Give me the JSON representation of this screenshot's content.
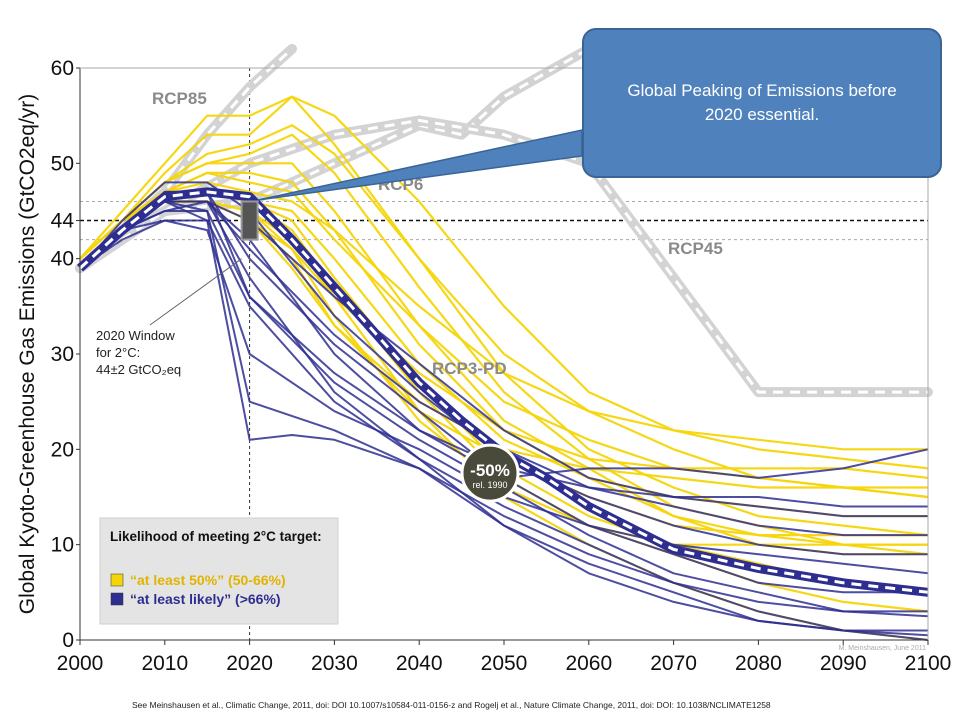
{
  "chart_data": {
    "type": "line",
    "ylabel": "Global Kyoto-Greenhouse Gas Emissions (GtCO2eq/yr)",
    "xlim": [
      2000,
      2100
    ],
    "ylim": [
      0,
      60
    ],
    "x_ticks": [
      "2000",
      "2010",
      "2020",
      "2030",
      "2040",
      "2050",
      "2060",
      "2070",
      "2080",
      "2090",
      "2100"
    ],
    "y_ticks": [
      {
        "value": 0,
        "label": "0"
      },
      {
        "value": 10,
        "label": "10"
      },
      {
        "value": 20,
        "label": "20"
      },
      {
        "value": 30,
        "label": "30"
      },
      {
        "value": 40,
        "label": "40"
      },
      {
        "value": 44,
        "label": "44"
      },
      {
        "value": 50,
        "label": "50"
      },
      {
        "value": 60,
        "label": "60"
      }
    ],
    "reference_lines": {
      "center": 44,
      "band": [
        42,
        46
      ],
      "window_year": 2020
    },
    "window_label": [
      "2020 Window",
      "for 2°C:",
      "44±2 GtCO₂eq"
    ],
    "reduction_marker": {
      "x": 2050,
      "y": 17.5,
      "label": "-50%",
      "sublabel": "rel. 1990"
    },
    "watermark": "M. Meinshausen, June 2011",
    "legend": {
      "title": "Likelihood of meeting 2°C target:",
      "entries": [
        {
          "label": "“at least 50%” (50-66%)",
          "color": "#f5d50a"
        },
        {
          "label": "“at least likely” (>66%)",
          "color": "#2e2e91"
        }
      ]
    },
    "rcp_series": [
      {
        "name": "RCP85",
        "x": [
          2000,
          2005,
          2010,
          2015,
          2020,
          2025
        ],
        "y": [
          39,
          43,
          47,
          53,
          58,
          62
        ]
      },
      {
        "name": "RCP6",
        "x": [
          2000,
          2005,
          2010,
          2020,
          2030,
          2040,
          2045,
          2050,
          2060
        ],
        "y": [
          39,
          43,
          45,
          46,
          50,
          54,
          53,
          57,
          62
        ]
      },
      {
        "name": "RCP45",
        "x": [
          2000,
          2010,
          2020,
          2030,
          2040,
          2050,
          2060,
          2070,
          2080,
          2090,
          2100
        ],
        "y": [
          39,
          45,
          50,
          53,
          54.5,
          53,
          50,
          38,
          26,
          26,
          26
        ]
      },
      {
        "name": "RCP3-PD",
        "x": [
          2000,
          2005,
          2010,
          2015,
          2020,
          2025,
          2030,
          2035,
          2040,
          2045,
          2050,
          2055,
          2060,
          2070,
          2080,
          2090,
          2100
        ],
        "y": [
          39,
          43,
          46.5,
          47,
          46.5,
          42,
          37,
          32,
          27,
          23,
          19.5,
          17,
          14,
          9.5,
          7.5,
          6,
          5
        ]
      }
    ],
    "scenarios_likely": [
      {
        "x": [
          2000,
          2005,
          2010,
          2015,
          2020,
          2025,
          2030,
          2040,
          2050,
          2060,
          2070,
          2080,
          2090,
          2100
        ],
        "y": [
          39,
          42.5,
          46,
          44,
          21,
          21.5,
          21,
          18,
          13,
          9,
          6,
          4,
          3,
          2.5
        ]
      },
      {
        "x": [
          2000,
          2005,
          2010,
          2015,
          2020,
          2030,
          2040,
          2050,
          2060,
          2070,
          2080,
          2090,
          2100
        ],
        "y": [
          39,
          43,
          46,
          45,
          25,
          22,
          18,
          12,
          8,
          5,
          2,
          1,
          0.5
        ]
      },
      {
        "x": [
          2000,
          2005,
          2010,
          2015,
          2020,
          2030,
          2040,
          2050,
          2060,
          2070,
          2080,
          2090,
          2100
        ],
        "y": [
          39,
          43,
          47,
          47,
          36,
          27,
          21,
          16,
          11,
          7,
          5,
          3,
          3
        ]
      },
      {
        "x": [
          2000,
          2005,
          2010,
          2015,
          2020,
          2030,
          2040,
          2050,
          2060,
          2070,
          2080,
          2090,
          2100
        ],
        "y": [
          39,
          43,
          47,
          47,
          40,
          31,
          24,
          17,
          12,
          9,
          6,
          5,
          5
        ]
      },
      {
        "x": [
          2000,
          2005,
          2010,
          2015,
          2020,
          2030,
          2040,
          2050,
          2060,
          2070,
          2080,
          2090,
          2100
        ],
        "y": [
          39,
          44,
          48,
          48,
          45,
          34,
          26,
          19,
          15,
          12,
          10,
          9,
          9
        ]
      },
      {
        "x": [
          2000,
          2005,
          2010,
          2015,
          2020,
          2030,
          2040,
          2050,
          2060,
          2070,
          2080,
          2090,
          2100
        ],
        "y": [
          39,
          43,
          46,
          46,
          44,
          36,
          29,
          22,
          17,
          15,
          14,
          13,
          13
        ]
      },
      {
        "x": [
          2000,
          2005,
          2010,
          2015,
          2020,
          2030,
          2040,
          2050,
          2060,
          2070,
          2080,
          2090,
          2100
        ],
        "y": [
          39,
          43,
          46,
          46,
          38,
          26,
          19,
          14,
          10,
          6,
          3,
          1,
          0
        ]
      },
      {
        "x": [
          2000,
          2005,
          2010,
          2015,
          2020,
          2030,
          2040,
          2050,
          2060,
          2070,
          2080,
          2090,
          2100
        ],
        "y": [
          39,
          43,
          45,
          46,
          42,
          30,
          22,
          17,
          18,
          18,
          17,
          18,
          20
        ]
      },
      {
        "x": [
          2000,
          2005,
          2010,
          2015,
          2020,
          2030,
          2040,
          2050,
          2060,
          2070,
          2080,
          2090,
          2100
        ],
        "y": [
          39,
          43,
          46,
          46,
          41,
          32,
          25,
          20,
          16,
          14,
          12,
          11,
          11
        ]
      },
      {
        "x": [
          2000,
          2005,
          2010,
          2015,
          2020,
          2030,
          2040,
          2050,
          2060,
          2070,
          2080,
          2090,
          2100
        ],
        "y": [
          39,
          43,
          45,
          45,
          36,
          28,
          22,
          18,
          16,
          15,
          15,
          14,
          14
        ]
      },
      {
        "x": [
          2000,
          2005,
          2010,
          2015,
          2020,
          2030,
          2040,
          2050,
          2060,
          2070,
          2080,
          2090,
          2100
        ],
        "y": [
          39,
          43,
          44,
          44,
          35,
          25,
          19,
          12,
          7,
          4,
          2,
          1,
          1
        ]
      },
      {
        "x": [
          2000,
          2005,
          2010,
          2015,
          2020,
          2030,
          2040,
          2050,
          2060,
          2070,
          2080,
          2090,
          2100
        ],
        "y": [
          39,
          42,
          44,
          43,
          30,
          24,
          20,
          15,
          12,
          10,
          9,
          8,
          7
        ]
      }
    ],
    "scenarios_50pct": [
      {
        "x": [
          2000,
          2005,
          2010,
          2015,
          2020,
          2025,
          2030,
          2040,
          2050,
          2060,
          2070,
          2080,
          2090,
          2100
        ],
        "y": [
          40,
          45,
          50,
          55,
          55,
          57,
          52,
          40,
          30,
          24,
          20,
          17,
          16,
          15
        ]
      },
      {
        "x": [
          2000,
          2005,
          2010,
          2015,
          2020,
          2025,
          2030,
          2040,
          2050,
          2060,
          2070,
          2080,
          2090,
          2100
        ],
        "y": [
          40,
          44,
          49,
          53,
          53,
          57,
          55,
          46,
          35,
          26,
          22,
          20,
          19,
          18
        ]
      },
      {
        "x": [
          2000,
          2005,
          2010,
          2015,
          2020,
          2025,
          2030,
          2040,
          2050,
          2060,
          2070,
          2080,
          2090,
          2100
        ],
        "y": [
          40,
          44,
          48,
          51,
          52,
          54,
          51,
          40,
          28,
          20,
          16,
          13,
          12,
          11
        ]
      },
      {
        "x": [
          2000,
          2005,
          2010,
          2015,
          2020,
          2025,
          2030,
          2040,
          2050,
          2060,
          2070,
          2080,
          2090,
          2100
        ],
        "y": [
          40,
          44,
          48,
          50,
          51,
          53,
          49,
          37,
          26,
          19,
          14,
          12,
          10,
          9
        ]
      },
      {
        "x": [
          2000,
          2005,
          2010,
          2015,
          2020,
          2025,
          2030,
          2040,
          2050,
          2060,
          2070,
          2080,
          2090,
          2100
        ],
        "y": [
          40,
          44,
          48,
          50,
          50,
          50,
          45,
          33,
          23,
          18,
          13,
          11,
          10,
          10
        ]
      },
      {
        "x": [
          2000,
          2005,
          2010,
          2015,
          2020,
          2025,
          2030,
          2040,
          2050,
          2060,
          2070,
          2080,
          2090,
          2100
        ],
        "y": [
          40,
          44,
          47,
          49,
          49,
          48,
          43,
          31,
          22,
          17,
          13,
          10,
          9,
          9
        ]
      },
      {
        "x": [
          2000,
          2005,
          2010,
          2015,
          2020,
          2025,
          2030,
          2040,
          2050,
          2060,
          2070,
          2080,
          2090,
          2100
        ],
        "y": [
          40,
          44,
          47,
          49,
          48,
          47,
          42,
          33,
          25,
          21,
          18,
          17,
          16,
          16
        ]
      },
      {
        "x": [
          2000,
          2005,
          2010,
          2015,
          2020,
          2025,
          2030,
          2040,
          2050,
          2060,
          2070,
          2080,
          2090,
          2100
        ],
        "y": [
          40,
          44,
          47,
          48,
          47,
          46,
          43,
          35,
          28,
          24,
          22,
          21,
          20,
          20
        ]
      },
      {
        "x": [
          2000,
          2005,
          2010,
          2015,
          2020,
          2025,
          2030,
          2040,
          2050,
          2060,
          2070,
          2080,
          2090,
          2100
        ],
        "y": [
          40,
          44,
          47,
          47,
          46,
          45,
          40,
          29,
          21,
          17,
          15,
          14,
          13,
          13
        ]
      },
      {
        "x": [
          2000,
          2005,
          2010,
          2015,
          2020,
          2025,
          2030,
          2040,
          2050,
          2060,
          2070,
          2080,
          2090,
          2100
        ],
        "y": [
          40,
          44,
          47,
          47,
          46,
          44,
          38,
          27,
          18,
          13,
          10,
          8,
          6,
          5
        ]
      },
      {
        "x": [
          2000,
          2005,
          2010,
          2015,
          2020,
          2025,
          2030,
          2040,
          2050,
          2060,
          2070,
          2080,
          2090,
          2100
        ],
        "y": [
          40,
          44,
          46,
          47,
          46,
          43,
          37,
          26,
          17,
          12,
          9,
          6,
          4,
          3
        ]
      },
      {
        "x": [
          2000,
          2005,
          2010,
          2015,
          2020,
          2025,
          2030,
          2040,
          2050,
          2060,
          2070,
          2080,
          2090,
          2100
        ],
        "y": [
          40,
          44,
          46,
          46,
          45,
          42,
          36,
          24,
          15,
          10,
          6,
          3,
          1,
          0
        ]
      },
      {
        "x": [
          2000,
          2005,
          2010,
          2015,
          2020,
          2025,
          2030,
          2040,
          2050,
          2060,
          2070,
          2080,
          2090,
          2100
        ],
        "y": [
          40,
          44,
          46,
          46,
          45,
          41,
          34,
          23,
          16,
          12,
          10,
          10,
          10,
          10
        ]
      },
      {
        "x": [
          2000,
          2005,
          2010,
          2015,
          2020,
          2025,
          2030,
          2040,
          2050,
          2060,
          2070,
          2080,
          2090,
          2100
        ],
        "y": [
          40,
          44,
          46,
          46,
          44,
          40,
          33,
          25,
          20,
          18,
          17,
          16,
          16,
          15
        ]
      },
      {
        "x": [
          2000,
          2005,
          2010,
          2015,
          2020,
          2025,
          2030,
          2040,
          2050,
          2060,
          2070,
          2080,
          2090,
          2100
        ],
        "y": [
          40,
          44,
          46,
          46,
          44,
          41,
          36,
          28,
          22,
          19,
          18,
          18,
          18,
          17
        ]
      },
      {
        "x": [
          2000,
          2005,
          2010,
          2015,
          2020,
          2025,
          2030,
          2040,
          2050,
          2060,
          2070,
          2080,
          2090,
          2100
        ],
        "y": [
          40,
          44,
          46,
          46,
          44,
          39,
          33,
          24,
          19,
          15,
          12,
          11,
          11,
          11
        ]
      }
    ]
  },
  "callout": {
    "text": "Global Peaking of Emissions before 2020 essential."
  },
  "citation": "See Meinshausen et al., Climatic Change, 2011, doi: DOI 10.1007/s10584-011-0156-z and Rogelj et al., Nature Climate Change, 2011, doi: DOI: 10.1038/NCLIMATE1258",
  "colors": {
    "gold": "#f5d50a",
    "navy": "#2e2e91",
    "rcp_grey": "#d3d3d3",
    "callout_blue": "#4f81bd"
  }
}
